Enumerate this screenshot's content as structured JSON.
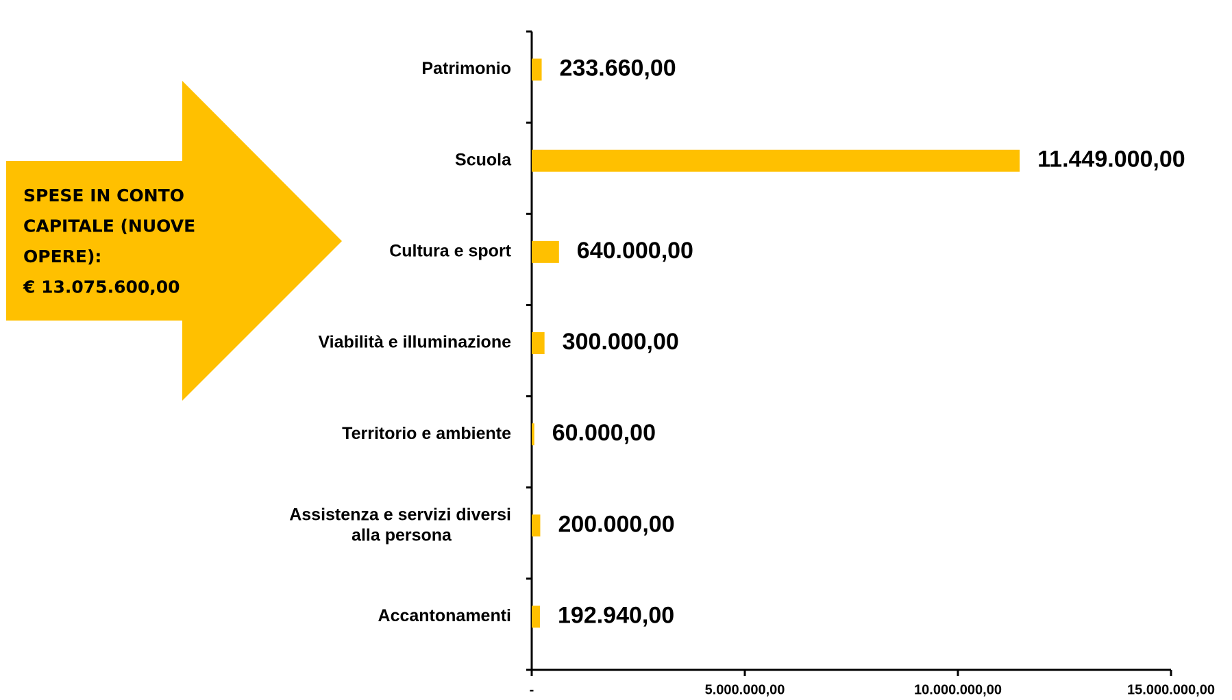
{
  "chart_data": {
    "type": "barh",
    "annotation": [
      "SPESE IN CONTO",
      "CAPITALE (NUOVE",
      "OPERE):",
      "€ 13.075.600,00"
    ],
    "categories": [
      "Patrimonio",
      "Scuola",
      "Cultura e sport",
      "Viabilità e illuminazione",
      "Territorio e ambiente",
      "Assistenza e servizi diversi alla persona",
      "Accantonamenti"
    ],
    "values": [
      233660,
      11449000,
      640000,
      300000,
      60000,
      200000,
      192940
    ],
    "value_labels": [
      "233.660,00",
      "11.449.000,00",
      "640.000,00",
      "300.000,00",
      "60.000,00",
      "200.000,00",
      "192.940,00"
    ],
    "color": "#FFC000",
    "xlim": [
      0,
      15000000
    ],
    "xticks": [
      {
        "value": 0,
        "label": "-"
      },
      {
        "value": 5000000,
        "label": "5.000.000,00"
      },
      {
        "value": 10000000,
        "label": "10.000.000,00"
      },
      {
        "value": 15000000,
        "label": "15.000.000,00"
      }
    ]
  }
}
